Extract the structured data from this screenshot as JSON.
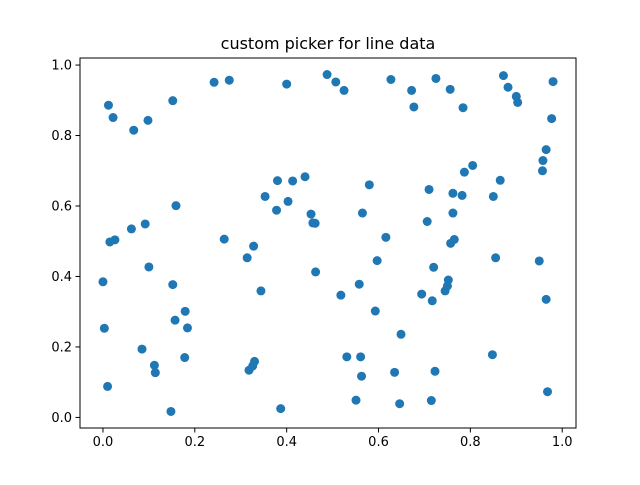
{
  "chart_data": {
    "type": "scatter",
    "title": "custom picker for line data",
    "xlabel": "",
    "ylabel": "",
    "xlim": [
      -0.05,
      1.03
    ],
    "ylim": [
      -0.03,
      1.02
    ],
    "xticks": [
      0.0,
      0.2,
      0.4,
      0.6,
      0.8,
      1.0
    ],
    "yticks": [
      0.0,
      0.2,
      0.4,
      0.6,
      0.8,
      1.0
    ],
    "xtick_labels": [
      "0.0",
      "0.2",
      "0.4",
      "0.6",
      "0.8",
      "1.0"
    ],
    "ytick_labels": [
      "0.0",
      "0.2",
      "0.4",
      "0.6",
      "0.8",
      "1.0"
    ],
    "grid": false,
    "marker_color": "#1f77b4",
    "points": [
      [
        0.012,
        0.886
      ],
      [
        0.022,
        0.851
      ],
      [
        0.067,
        0.815
      ],
      [
        0.098,
        0.843
      ],
      [
        0.152,
        0.899
      ],
      [
        0.242,
        0.951
      ],
      [
        0.275,
        0.957
      ],
      [
        0.4,
        0.946
      ],
      [
        0.488,
        0.973
      ],
      [
        0.507,
        0.952
      ],
      [
        0.525,
        0.928
      ],
      [
        0.627,
        0.959
      ],
      [
        0.672,
        0.928
      ],
      [
        0.677,
        0.881
      ],
      [
        0.725,
        0.962
      ],
      [
        0.756,
        0.931
      ],
      [
        0.784,
        0.879
      ],
      [
        0.872,
        0.97
      ],
      [
        0.882,
        0.937
      ],
      [
        0.9,
        0.911
      ],
      [
        0.903,
        0.894
      ],
      [
        0.98,
        0.953
      ],
      [
        0.977,
        0.848
      ],
      [
        0.965,
        0.76
      ],
      [
        0.958,
        0.729
      ],
      [
        0.957,
        0.7
      ],
      [
        0.0,
        0.385
      ],
      [
        0.003,
        0.253
      ],
      [
        0.01,
        0.088
      ],
      [
        0.015,
        0.498
      ],
      [
        0.026,
        0.504
      ],
      [
        0.062,
        0.535
      ],
      [
        0.085,
        0.194
      ],
      [
        0.092,
        0.549
      ],
      [
        0.1,
        0.427
      ],
      [
        0.112,
        0.148
      ],
      [
        0.114,
        0.127
      ],
      [
        0.148,
        0.017
      ],
      [
        0.152,
        0.377
      ],
      [
        0.157,
        0.276
      ],
      [
        0.159,
        0.601
      ],
      [
        0.179,
        0.301
      ],
      [
        0.184,
        0.254
      ],
      [
        0.178,
        0.17
      ],
      [
        0.264,
        0.506
      ],
      [
        0.314,
        0.453
      ],
      [
        0.318,
        0.134
      ],
      [
        0.326,
        0.146
      ],
      [
        0.33,
        0.159
      ],
      [
        0.328,
        0.486
      ],
      [
        0.344,
        0.359
      ],
      [
        0.353,
        0.627
      ],
      [
        0.378,
        0.588
      ],
      [
        0.38,
        0.672
      ],
      [
        0.387,
        0.025
      ],
      [
        0.403,
        0.613
      ],
      [
        0.413,
        0.671
      ],
      [
        0.44,
        0.683
      ],
      [
        0.453,
        0.577
      ],
      [
        0.457,
        0.552
      ],
      [
        0.462,
        0.551
      ],
      [
        0.463,
        0.413
      ],
      [
        0.518,
        0.347
      ],
      [
        0.531,
        0.172
      ],
      [
        0.551,
        0.049
      ],
      [
        0.558,
        0.378
      ],
      [
        0.561,
        0.172
      ],
      [
        0.563,
        0.117
      ],
      [
        0.565,
        0.58
      ],
      [
        0.58,
        0.66
      ],
      [
        0.593,
        0.302
      ],
      [
        0.597,
        0.445
      ],
      [
        0.616,
        0.511
      ],
      [
        0.635,
        0.128
      ],
      [
        0.646,
        0.039
      ],
      [
        0.649,
        0.236
      ],
      [
        0.694,
        0.35
      ],
      [
        0.706,
        0.556
      ],
      [
        0.71,
        0.647
      ],
      [
        0.715,
        0.048
      ],
      [
        0.717,
        0.331
      ],
      [
        0.72,
        0.426
      ],
      [
        0.723,
        0.131
      ],
      [
        0.745,
        0.359
      ],
      [
        0.75,
        0.373
      ],
      [
        0.752,
        0.39
      ],
      [
        0.757,
        0.494
      ],
      [
        0.762,
        0.58
      ],
      [
        0.762,
        0.636
      ],
      [
        0.765,
        0.505
      ],
      [
        0.782,
        0.63
      ],
      [
        0.787,
        0.696
      ],
      [
        0.805,
        0.715
      ],
      [
        0.848,
        0.178
      ],
      [
        0.85,
        0.627
      ],
      [
        0.855,
        0.453
      ],
      [
        0.865,
        0.673
      ],
      [
        0.95,
        0.444
      ],
      [
        0.965,
        0.335
      ],
      [
        0.968,
        0.073
      ]
    ]
  }
}
